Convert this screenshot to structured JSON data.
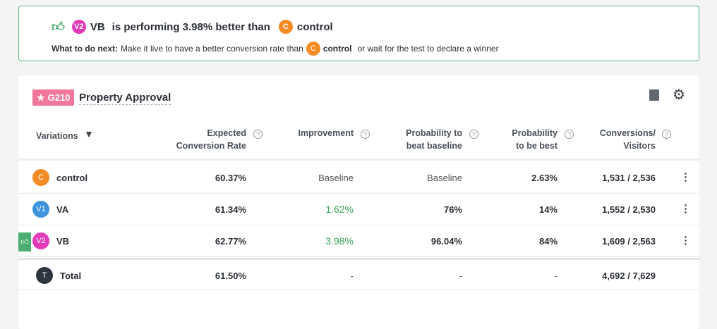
{
  "banner": {
    "winner_badge": "V2",
    "winner_name": "VB",
    "text": "is performing 3.98% better than",
    "baseline_badge": "C",
    "baseline_name": "control",
    "next_label": "What to do next:",
    "next_text": "Make it live to have a better conversion rate than",
    "next_badge": "C",
    "next_name": "control",
    "next_suffix": "or wait for the test to declare a winner",
    "icon": "thumbs-up-icon"
  },
  "card": {
    "tag": "G210",
    "title": "Property Approval",
    "icons": [
      "book-icon",
      "gear-icon"
    ]
  },
  "columns": {
    "variations": "Variations",
    "expected": [
      "Expected",
      "Conversion Rate"
    ],
    "improvement": "Improvement",
    "beat": [
      "Probability to",
      "beat baseline"
    ],
    "best": [
      "Probability",
      "to be best"
    ],
    "conversions": [
      "Conversions/",
      "Visitors"
    ]
  },
  "rows": [
    {
      "badge": "C",
      "color": "#f58b24",
      "name": "control",
      "expected": "60.37%",
      "improvement": "Baseline",
      "beat": "Baseline",
      "best": "2.63%",
      "conversions": "1,531 / 2,536",
      "winner": false
    },
    {
      "badge": "V1",
      "color": "#3d93dc",
      "name": "VA",
      "expected": "61.34%",
      "improvement": "1.62%",
      "beat": "76%",
      "best": "14%",
      "conversions": "1,552 / 2,530",
      "winner": false
    },
    {
      "badge": "V2",
      "color": "#e23ab9",
      "name": "VB",
      "expected": "62.77%",
      "improvement": "3.98%",
      "beat": "96.04%",
      "best": "84%",
      "conversions": "1,609 / 2,563",
      "winner": true
    }
  ],
  "total": {
    "badge": "T",
    "name": "Total",
    "expected": "61.50%",
    "improvement": "-",
    "beat": "-",
    "best": "-",
    "conversions": "4,692 / 7,629"
  },
  "colors": {
    "success": "#4caf71",
    "tag": "#f2779a",
    "text": "#2b2f36"
  }
}
